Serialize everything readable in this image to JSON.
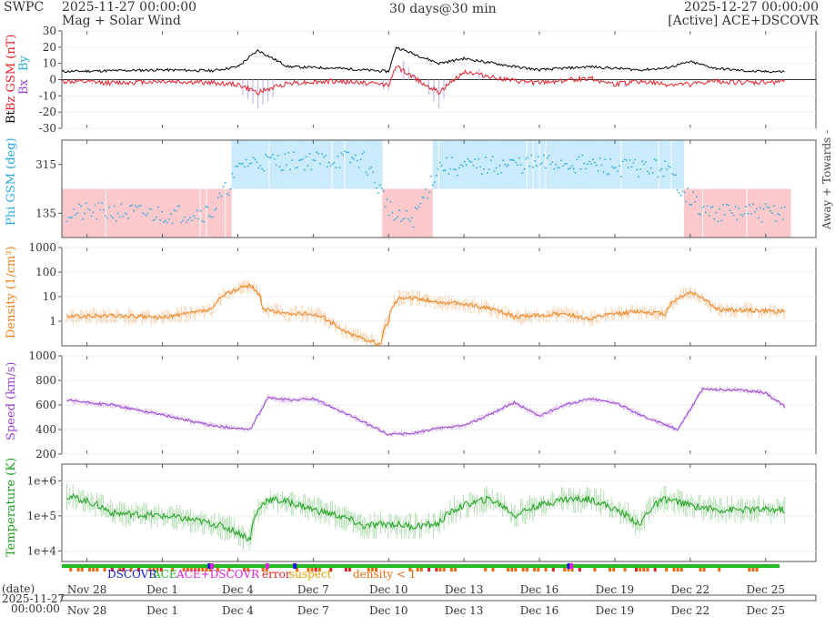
{
  "header": {
    "org": "SWPC",
    "start": "2025-11-27 00:00:00",
    "subtitle": "Mag + Solar Wind",
    "resolution": "30 days@30 min",
    "end": "2025-12-27 00:00:00",
    "source": "[Active] ACE+DSCOVR"
  },
  "footer": {
    "date_label": "(date)",
    "date_value": "2025-11-27",
    "time_value": "00:00:00",
    "legend": [
      {
        "label": "DSCOVR",
        "color": "#1a1adb"
      },
      {
        "label": "ACE",
        "color": "#22bb22"
      },
      {
        "label": "ACE+DSCOVR",
        "color": "#e020e0"
      },
      {
        "label": "error",
        "color": "#dd2222"
      },
      {
        "label": "suspect",
        "color": "#e8a000"
      },
      {
        "label": "density < 1",
        "color": "#e86a10"
      }
    ]
  },
  "colors": {
    "bt": "#000000",
    "bz": "#e8202a",
    "phi": "#29a9e0",
    "density": "#f07f1a",
    "speed": "#9a3fd6",
    "temperature": "#20a020",
    "towards_band": "#c9ebfb",
    "away_band": "#fbc9cc"
  },
  "chart_data": [
    {
      "type": "line",
      "panel": "mag",
      "ylabel_parts": [
        "Bt",
        "Bz GSM (nT)"
      ],
      "legend_glyphs": [
        "Bx",
        "By"
      ],
      "ylim": [
        -30,
        30
      ],
      "yticks": [
        30,
        20,
        10,
        0,
        -10,
        -20,
        -30
      ],
      "x_days": [
        0,
        2,
        4,
        6,
        7,
        7.8,
        9,
        11,
        12,
        13,
        13.3,
        15,
        16,
        18,
        19,
        21,
        22,
        23,
        24,
        25,
        26,
        27.5,
        28.8
      ],
      "series": [
        {
          "name": "Bt",
          "color": "#000000",
          "values": [
            5,
            5.5,
            6,
            5.5,
            8,
            18,
            8,
            7,
            6,
            5,
            20,
            10,
            13,
            8,
            6,
            8,
            7,
            6,
            7,
            11,
            7,
            5,
            5
          ]
        },
        {
          "name": "Bz",
          "color": "#e8202a",
          "values": [
            -1,
            -2,
            -1,
            -2,
            -3,
            -8,
            -2,
            -1,
            -2,
            -3,
            8,
            -8,
            5,
            -1,
            -2,
            1,
            -3,
            -1,
            -3,
            -3,
            -1,
            -2,
            -1
          ]
        }
      ]
    },
    {
      "type": "scatter",
      "panel": "phi",
      "ylabel": "Phi GSM (deg)",
      "right_label": "Away +  Towards -",
      "yticks": [
        315,
        135
      ],
      "ylim": [
        45,
        405
      ],
      "x_days": [
        0,
        2,
        4,
        6,
        7.2,
        8,
        10,
        12,
        13.3,
        14,
        15,
        16,
        18,
        20,
        22,
        24,
        25.5,
        27,
        28.8
      ],
      "values": [
        135,
        140,
        130,
        140,
        320,
        325,
        330,
        335,
        110,
        115,
        310,
        305,
        315,
        320,
        305,
        300,
        140,
        135,
        138
      ]
    },
    {
      "type": "line",
      "panel": "density",
      "ylabel": "Density (1/cm³)",
      "yscale": "log",
      "yticks": [
        "1000",
        "100",
        "10",
        "1"
      ],
      "ylim": [
        0.1,
        1000
      ],
      "x_days": [
        0,
        2,
        4,
        5,
        6,
        7.5,
        8,
        9,
        10,
        11,
        11.5,
        12,
        12.7,
        13,
        13.5,
        15,
        16,
        18,
        20,
        21,
        22,
        23,
        24,
        25,
        26,
        28.8
      ],
      "values": [
        1.5,
        1.7,
        1.4,
        2,
        3,
        30,
        3,
        2,
        2,
        0.5,
        0.3,
        0.2,
        0.1,
        1,
        10,
        6,
        5,
        1.5,
        2,
        1.2,
        2,
        2.5,
        2,
        15,
        3,
        2.5
      ]
    },
    {
      "type": "line",
      "panel": "speed",
      "ylabel": "Speed (km/s)",
      "ylim": [
        200,
        1000
      ],
      "yticks": [
        1000,
        800,
        600,
        400,
        200
      ],
      "x_days": [
        0,
        2,
        4,
        6,
        7.5,
        8.2,
        9,
        10,
        11,
        12,
        13,
        14,
        15,
        16,
        17,
        18,
        19,
        20,
        21,
        22,
        23,
        24,
        24.5,
        25.5,
        27,
        28,
        28.8
      ],
      "values": [
        640,
        600,
        520,
        430,
        400,
        660,
        640,
        650,
        560,
        460,
        360,
        370,
        410,
        430,
        520,
        620,
        510,
        600,
        650,
        620,
        520,
        440,
        400,
        730,
        720,
        700,
        580
      ]
    },
    {
      "type": "line",
      "panel": "temperature",
      "ylabel": "Temperature (K)",
      "yscale": "log",
      "yticks": [
        "1e+6",
        "1e+5",
        "1e+4"
      ],
      "ylim": [
        5000,
        3000000
      ],
      "x_days": [
        0,
        2,
        4,
        6,
        7.5,
        8.2,
        9,
        10,
        11,
        12,
        13,
        14,
        15,
        16,
        17,
        18,
        19,
        20,
        21,
        22,
        23,
        24,
        25,
        26,
        28.8
      ],
      "values": [
        400000,
        120000,
        100000,
        60000,
        20000,
        300000,
        250000,
        150000,
        100000,
        50000,
        60000,
        50000,
        60000,
        200000,
        300000,
        100000,
        200000,
        300000,
        300000,
        150000,
        50000,
        300000,
        200000,
        150000,
        150000
      ]
    }
  ],
  "xaxis": {
    "labels": [
      "Nov 28",
      "Dec 1",
      "Dec 4",
      "Dec 7",
      "Dec 10",
      "Dec 13",
      "Dec 16",
      "Dec 19",
      "Dec 22",
      "Dec 25"
    ],
    "label_days": [
      1,
      4,
      7,
      10,
      13,
      16,
      19,
      22,
      25,
      28
    ],
    "range_days": [
      0,
      30
    ]
  }
}
